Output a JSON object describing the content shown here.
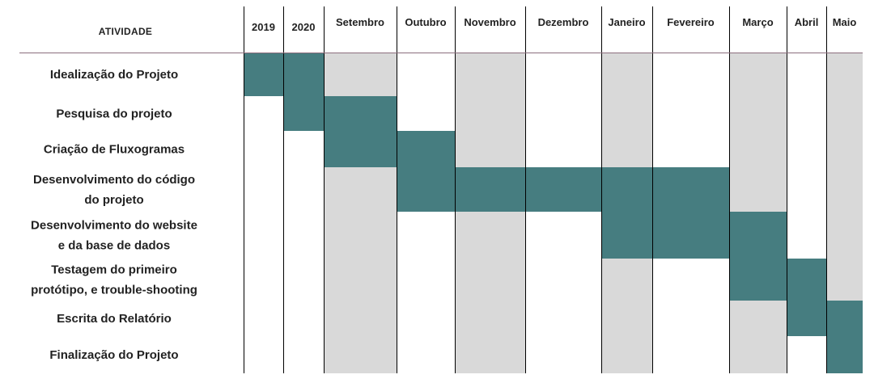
{
  "chart_data": {
    "type": "gantt",
    "activity_header": "ATIVIDADE",
    "periods": [
      "2019",
      "2020",
      "Setembro",
      "Outubro",
      "Novembro",
      "Dezembro",
      "Janeiro",
      "Fevereiro",
      "Março",
      "Abril",
      "Maio"
    ],
    "shaded_periods": [
      "Setembro",
      "Novembro",
      "Janeiro",
      "Março",
      "Maio"
    ],
    "tasks": [
      {
        "label": [
          "Idealização do Projeto"
        ],
        "start": "2019",
        "end": "2020"
      },
      {
        "label": [
          "Pesquisa do projeto"
        ],
        "start": "2020",
        "end": "Setembro"
      },
      {
        "label": [
          "Criação de Fluxogramas"
        ],
        "start": "Setembro",
        "end": "Outubro"
      },
      {
        "label": [
          "Desenvolvimento do código",
          "do projeto"
        ],
        "start": "Outubro",
        "end": "Fevereiro"
      },
      {
        "label": [
          "Desenvolvimento do website",
          "e da base de dados"
        ],
        "start": "Janeiro",
        "end": "Março"
      },
      {
        "label": [
          "Testagem do primeiro",
          "protótipo, e trouble-shooting"
        ],
        "start": "Março",
        "end": "Abril"
      },
      {
        "label": [
          "Escrita do Relatório"
        ],
        "start": "Abril",
        "end": "Maio"
      },
      {
        "label": [
          "Finalização do Projeto"
        ],
        "start": "Maio",
        "end": "Maio"
      }
    ],
    "colors": {
      "bar": "#467d80",
      "shade": "#d9d9d9",
      "divider": "#000000",
      "header_line": "#8b6d7d"
    }
  }
}
